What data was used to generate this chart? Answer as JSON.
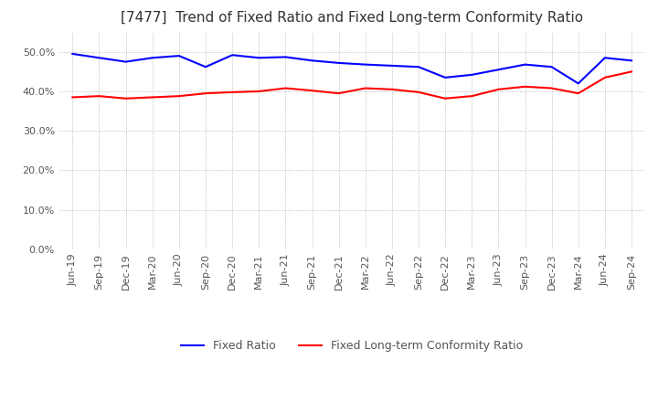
{
  "title": "[7477]  Trend of Fixed Ratio and Fixed Long-term Conformity Ratio",
  "x_labels": [
    "Jun-19",
    "Sep-19",
    "Dec-19",
    "Mar-20",
    "Jun-20",
    "Sep-20",
    "Dec-20",
    "Mar-21",
    "Jun-21",
    "Sep-21",
    "Dec-21",
    "Mar-22",
    "Jun-22",
    "Sep-22",
    "Dec-22",
    "Mar-23",
    "Jun-23",
    "Sep-23",
    "Dec-23",
    "Mar-24",
    "Jun-24",
    "Sep-24"
  ],
  "fixed_ratio": [
    49.5,
    48.5,
    47.5,
    48.5,
    49.0,
    46.2,
    49.2,
    48.5,
    48.7,
    47.8,
    47.2,
    46.8,
    46.5,
    46.2,
    43.5,
    44.2,
    45.5,
    46.8,
    46.2,
    42.0,
    48.5,
    47.8
  ],
  "fixed_lt_ratio": [
    38.5,
    38.8,
    38.2,
    38.5,
    38.8,
    39.5,
    39.8,
    40.0,
    40.8,
    40.2,
    39.5,
    40.8,
    40.5,
    39.8,
    38.2,
    38.8,
    40.5,
    41.2,
    40.8,
    39.5,
    43.5,
    45.0
  ],
  "fixed_ratio_color": "#0000FF",
  "fixed_lt_ratio_color": "#FF0000",
  "ylim": [
    0.0,
    55.0
  ],
  "yticks": [
    0.0,
    10.0,
    20.0,
    30.0,
    40.0,
    50.0
  ],
  "background_color": "#FFFFFF",
  "grid_color": "#AAAAAA",
  "title_fontsize": 11,
  "legend_fontsize": 9,
  "tick_fontsize": 8
}
